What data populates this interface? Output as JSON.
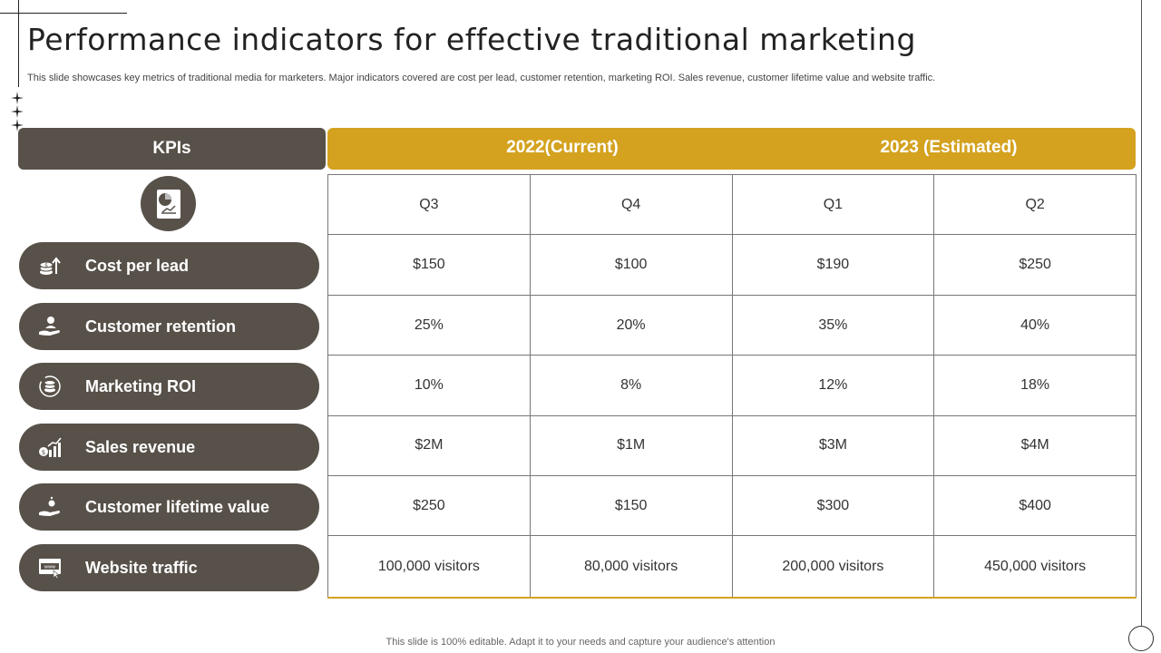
{
  "slide": {
    "title": "Performance indicators for effective traditional marketing",
    "subtitle": "This slide showcases key metrics of traditional media for marketers. Major indicators covered are cost per lead, customer retention, marketing ROI. Sales revenue, customer lifetime value and website traffic.",
    "footer": "This slide is 100% editable. Adapt it to your needs and capture your audience's attention"
  },
  "header": {
    "kpis_label": "KPIs",
    "year_2022": "2022(Current)",
    "year_2023": "2023 (Estimated)"
  },
  "quarters": [
    "Q3",
    "Q4",
    "Q1",
    "Q2"
  ],
  "kpis": [
    {
      "label": "Cost per  lead",
      "icon": "cost-coins-icon"
    },
    {
      "label": "Customer retention",
      "icon": "hand-person-icon"
    },
    {
      "label": "Marketing ROI",
      "icon": "roi-dollar-icon"
    },
    {
      "label": "Sales revenue",
      "icon": "growth-chart-icon"
    },
    {
      "label": "Customer lifetime value",
      "icon": "hand-coins-icon"
    },
    {
      "label": "Website traffic",
      "icon": "www-browser-icon"
    }
  ],
  "rows": [
    [
      "$150",
      "$100",
      "$190",
      "$250"
    ],
    [
      "25%",
      "20%",
      "35%",
      "40%"
    ],
    [
      "10%",
      "8%",
      "12%",
      "18%"
    ],
    [
      "$2M",
      "$1M",
      "$3M",
      "$4M"
    ],
    [
      "$250",
      "$150",
      "$300",
      "$400"
    ],
    [
      "100,000 visitors",
      "80,000 visitors",
      "200,000 visitors",
      "450,000 visitors"
    ]
  ],
  "colors": {
    "dark": "#575149",
    "accent": "#d4a21f"
  }
}
